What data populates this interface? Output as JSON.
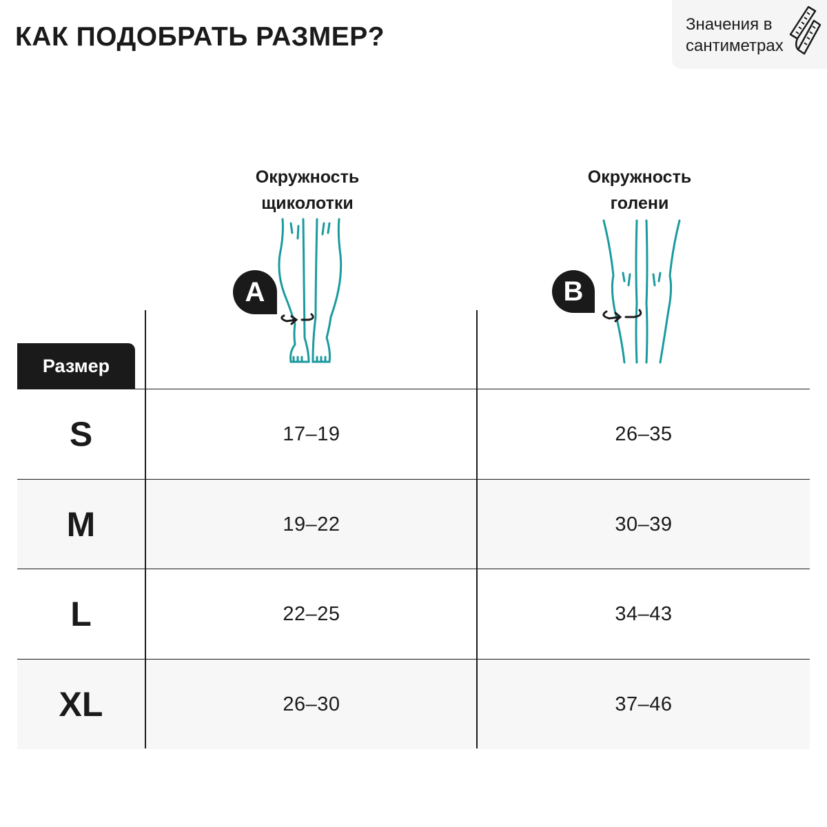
{
  "title": "КАК ПОДОБРАТЬ РАЗМЕР?",
  "note": {
    "line1": "Значения в",
    "line2": "сантиметрах",
    "icon": "measuring-tape-icon"
  },
  "columns": [
    {
      "marker": "A",
      "line1": "Окружность",
      "line2": "щиколотки"
    },
    {
      "marker": "B",
      "line1": "Окружность",
      "line2": "голени"
    }
  ],
  "size_header": "Размер",
  "rows": [
    {
      "size": "S",
      "a": "17–19",
      "b": "26–35"
    },
    {
      "size": "M",
      "a": "19–22",
      "b": "30–39"
    },
    {
      "size": "L",
      "a": "22–25",
      "b": "34–43"
    },
    {
      "size": "XL",
      "a": "26–30",
      "b": "37–46"
    }
  ],
  "colors": {
    "accent": "#1a9a9e",
    "dark": "#1a1a1a",
    "row_alt": "#f7f7f7"
  }
}
